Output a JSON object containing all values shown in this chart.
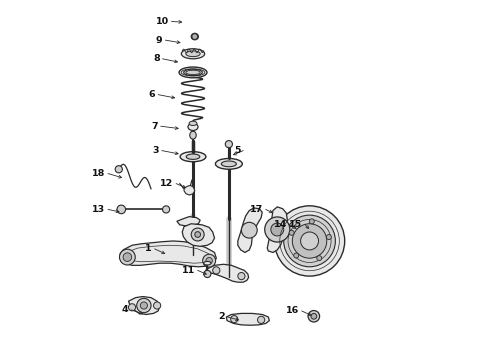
{
  "bg_color": "#ffffff",
  "line_color": "#2a2a2a",
  "label_color": "#111111",
  "figsize": [
    4.9,
    3.6
  ],
  "dpi": 100,
  "lw_main": 0.9,
  "lw_thin": 0.6,
  "label_positions": {
    "10": [
      0.295,
      0.942,
      0.33,
      0.94
    ],
    "9": [
      0.278,
      0.89,
      0.325,
      0.882
    ],
    "8": [
      0.27,
      0.838,
      0.318,
      0.828
    ],
    "6": [
      0.258,
      0.738,
      0.31,
      0.728
    ],
    "7": [
      0.265,
      0.65,
      0.32,
      0.643
    ],
    "3": [
      0.268,
      0.582,
      0.32,
      0.572
    ],
    "5": [
      0.495,
      0.582,
      0.462,
      0.568
    ],
    "18": [
      0.118,
      0.518,
      0.162,
      0.505
    ],
    "12": [
      0.308,
      0.49,
      0.34,
      0.476
    ],
    "13": [
      0.118,
      0.418,
      0.155,
      0.41
    ],
    "1": [
      0.248,
      0.308,
      0.282,
      0.292
    ],
    "11": [
      0.368,
      0.248,
      0.398,
      0.235
    ],
    "4": [
      0.182,
      0.138,
      0.22,
      0.125
    ],
    "2": [
      0.452,
      0.118,
      0.488,
      0.108
    ],
    "17": [
      0.558,
      0.418,
      0.582,
      0.406
    ],
    "14": [
      0.625,
      0.375,
      0.648,
      0.362
    ],
    "15": [
      0.668,
      0.375,
      0.682,
      0.36
    ],
    "16": [
      0.658,
      0.135,
      0.69,
      0.12
    ]
  }
}
